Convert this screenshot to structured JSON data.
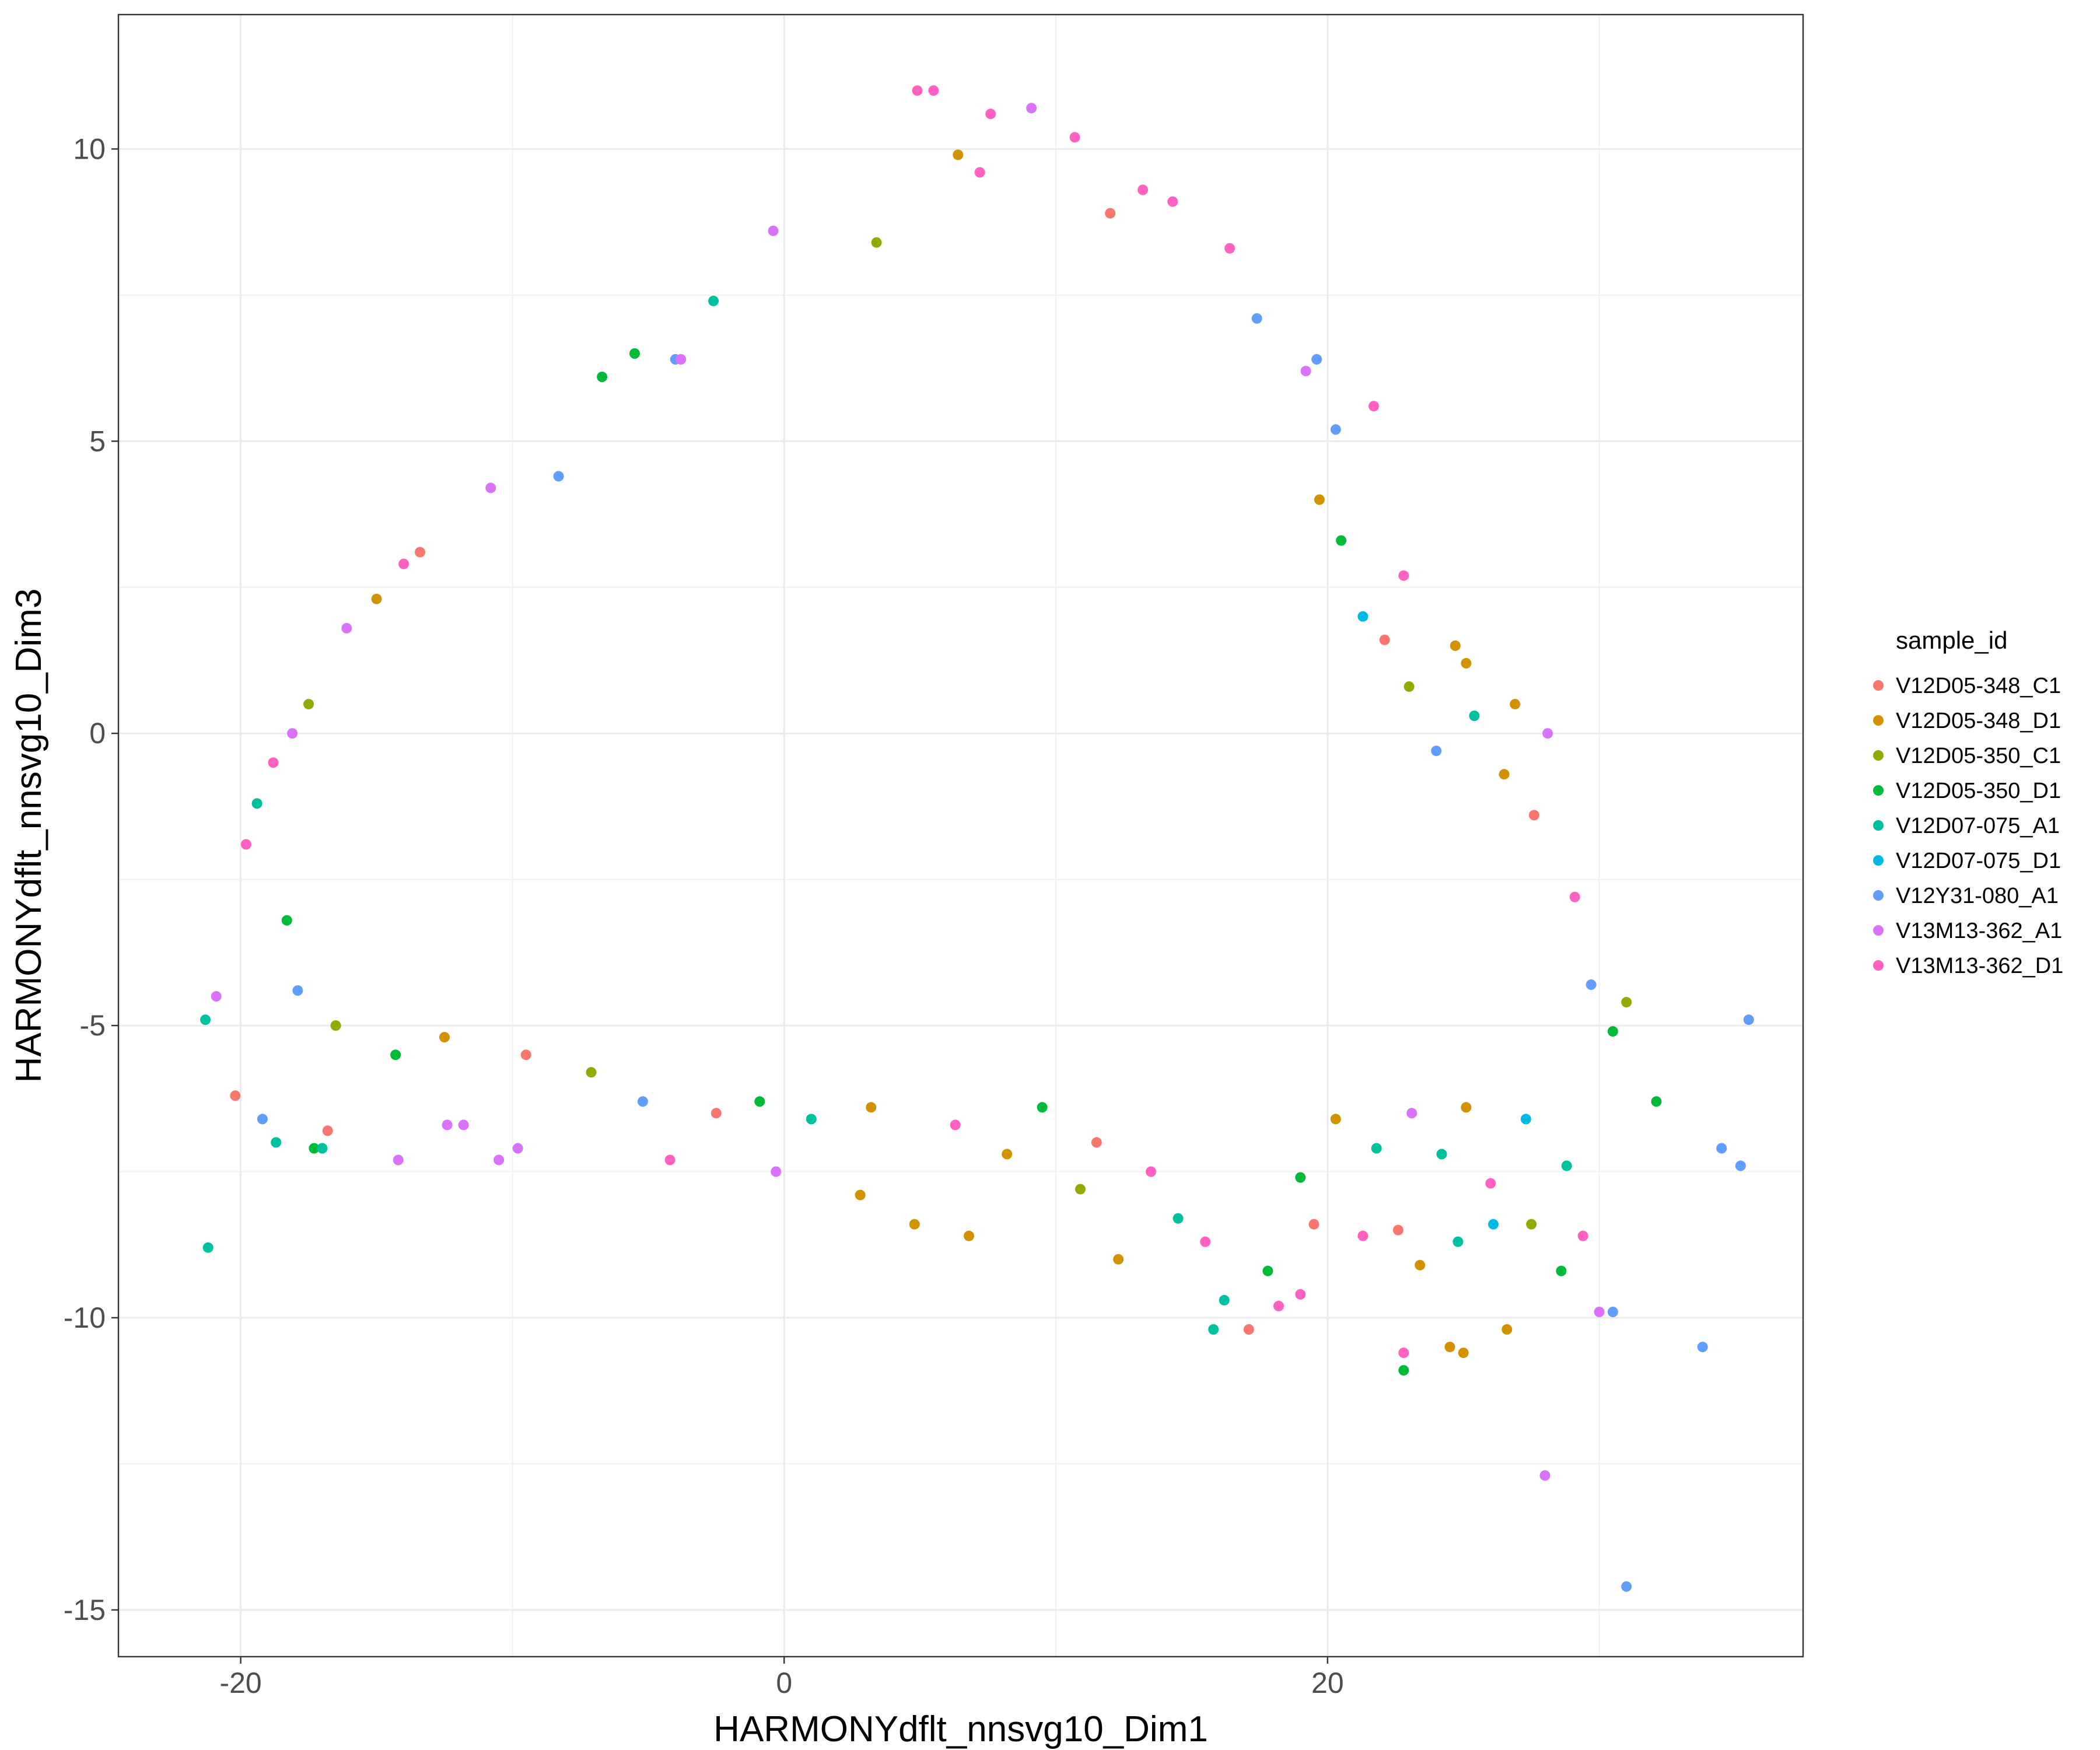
{
  "chart_data": {
    "type": "scatter",
    "title": "",
    "xlabel": "HARMONYdflt_nnsvg10_Dim1",
    "ylabel": "HARMONYdflt_nnsvg10_Dim3",
    "xlim": [
      -24.5,
      37.5
    ],
    "ylim": [
      -15.8,
      12.3
    ],
    "x_ticks": [
      -20,
      0,
      20
    ],
    "x_tick_labels": [
      "-20",
      "0",
      "20"
    ],
    "y_ticks": [
      -15,
      -10,
      -5,
      0,
      5,
      10
    ],
    "y_tick_labels": [
      "-15",
      "-10",
      "-5",
      "0",
      "5",
      "10"
    ],
    "x_minor_ticks": [
      -10,
      10,
      30
    ],
    "y_minor_ticks": [
      -12.5,
      -7.5,
      -2.5,
      2.5,
      7.5
    ],
    "grid": true,
    "legend_title": "sample_id",
    "legend_position": "right",
    "series": [
      {
        "name": "V12D05-348_C1",
        "color": "#F8766D"
      },
      {
        "name": "V12D05-348_D1",
        "color": "#D39200"
      },
      {
        "name": "V12D05-350_C1",
        "color": "#93AA00"
      },
      {
        "name": "V12D05-350_D1",
        "color": "#00BA38"
      },
      {
        "name": "V12D07-075_A1",
        "color": "#00C19F"
      },
      {
        "name": "V12D07-075_D1",
        "color": "#00B9E3"
      },
      {
        "name": "V12Y31-080_A1",
        "color": "#619CFF"
      },
      {
        "name": "V13M13-362_A1",
        "color": "#DB72FB"
      },
      {
        "name": "V13M13-362_D1",
        "color": "#FF61C3"
      }
    ],
    "points": [
      [
        -21.2,
        -8.8,
        4
      ],
      [
        -21.3,
        -4.9,
        4
      ],
      [
        -20.2,
        -6.2,
        0
      ],
      [
        -19.8,
        -1.9,
        8
      ],
      [
        -19.2,
        -6.6,
        6
      ],
      [
        -20.9,
        -4.5,
        7
      ],
      [
        -18.7,
        -7.0,
        4
      ],
      [
        -17.3,
        -7.1,
        3
      ],
      [
        -16.8,
        -6.8,
        0
      ],
      [
        -17.0,
        -7.1,
        4
      ],
      [
        -14.2,
        -7.3,
        7
      ],
      [
        -10.5,
        -7.3,
        7
      ],
      [
        -11.8,
        -6.7,
        7
      ],
      [
        -12.4,
        -6.7,
        7
      ],
      [
        -9.8,
        -7.1,
        7
      ],
      [
        -4.2,
        -7.3,
        8
      ],
      [
        -0.3,
        -7.5,
        7
      ],
      [
        -0.9,
        -6.3,
        3
      ],
      [
        2.8,
        -7.9,
        1
      ],
      [
        4.8,
        -8.4,
        1
      ],
      [
        6.8,
        -8.6,
        1
      ],
      [
        10.9,
        -7.8,
        2
      ],
      [
        12.3,
        -9.0,
        1
      ],
      [
        16.2,
        -9.7,
        4
      ],
      [
        17.1,
        -10.2,
        0
      ],
      [
        15.8,
        -10.2,
        4
      ],
      [
        18.2,
        -9.8,
        8
      ],
      [
        19.0,
        -9.6,
        8
      ],
      [
        22.8,
        -10.9,
        3
      ],
      [
        22.8,
        -10.6,
        8
      ],
      [
        24.5,
        -10.5,
        1
      ],
      [
        25.0,
        -10.6,
        1
      ],
      [
        26.6,
        -10.2,
        1
      ],
      [
        28.0,
        -12.7,
        7
      ],
      [
        30.5,
        -9.9,
        6
      ],
      [
        30.0,
        -9.9,
        7
      ],
      [
        33.8,
        -10.5,
        6
      ],
      [
        31.0,
        -14.6,
        6
      ],
      [
        35.2,
        -7.4,
        6
      ],
      [
        34.5,
        -7.1,
        6
      ],
      [
        35.5,
        -4.9,
        6
      ],
      [
        32.1,
        -6.3,
        3
      ],
      [
        31.0,
        -4.6,
        2
      ],
      [
        30.5,
        -5.1,
        3
      ],
      [
        28.1,
        0.0,
        7
      ],
      [
        26.9,
        0.5,
        1
      ],
      [
        24.7,
        1.5,
        1
      ],
      [
        25.1,
        1.2,
        1
      ],
      [
        22.8,
        2.7,
        8
      ],
      [
        21.7,
        5.6,
        8
      ],
      [
        20.3,
        5.2,
        6
      ],
      [
        19.6,
        6.4,
        6
      ],
      [
        19.2,
        6.2,
        7
      ],
      [
        17.4,
        7.1,
        6
      ],
      [
        16.4,
        8.3,
        8
      ],
      [
        13.2,
        9.3,
        8
      ],
      [
        14.3,
        9.1,
        8
      ],
      [
        10.7,
        10.2,
        8
      ],
      [
        9.1,
        10.7,
        7
      ],
      [
        7.6,
        10.6,
        8
      ],
      [
        5.5,
        11.0,
        8
      ],
      [
        4.9,
        11.0,
        8
      ],
      [
        6.4,
        9.9,
        1
      ],
      [
        7.2,
        9.6,
        8
      ],
      [
        12.0,
        8.9,
        0
      ],
      [
        3.4,
        8.4,
        2
      ],
      [
        -0.4,
        8.6,
        7
      ],
      [
        -2.6,
        7.4,
        4
      ],
      [
        -5.5,
        6.5,
        3
      ],
      [
        -6.7,
        6.1,
        3
      ],
      [
        -4.0,
        6.4,
        6
      ],
      [
        -3.8,
        6.4,
        7
      ],
      [
        -13.4,
        3.1,
        0
      ],
      [
        -10.8,
        4.2,
        7
      ],
      [
        -8.3,
        4.4,
        6
      ],
      [
        -14.0,
        2.9,
        8
      ],
      [
        -15.0,
        2.3,
        1
      ],
      [
        -16.1,
        1.8,
        7
      ],
      [
        -17.5,
        0.5,
        2
      ],
      [
        -18.1,
        0.0,
        7
      ],
      [
        -18.8,
        -0.5,
        8
      ],
      [
        -19.4,
        -1.2,
        4
      ],
      [
        -18.3,
        -3.2,
        3
      ],
      [
        -17.9,
        -4.4,
        6
      ],
      [
        -16.5,
        -5.0,
        2
      ],
      [
        -14.3,
        -5.5,
        3
      ],
      [
        -12.5,
        -5.2,
        1
      ],
      [
        -9.5,
        -5.5,
        0
      ],
      [
        -7.1,
        -5.8,
        2
      ],
      [
        -5.2,
        -6.3,
        6
      ],
      [
        -2.5,
        -6.5,
        0
      ],
      [
        1.0,
        -6.6,
        4
      ],
      [
        3.2,
        -6.4,
        1
      ],
      [
        6.3,
        -6.7,
        8
      ],
      [
        8.2,
        -7.2,
        1
      ],
      [
        9.5,
        -6.4,
        3
      ],
      [
        11.5,
        -7.0,
        0
      ],
      [
        13.5,
        -7.5,
        8
      ],
      [
        14.5,
        -8.3,
        4
      ],
      [
        15.5,
        -8.7,
        8
      ],
      [
        17.8,
        -9.2,
        3
      ],
      [
        19.5,
        -8.4,
        0
      ],
      [
        21.3,
        -8.6,
        8
      ],
      [
        22.6,
        -8.5,
        0
      ],
      [
        23.4,
        -9.1,
        1
      ],
      [
        24.8,
        -8.7,
        4
      ],
      [
        26.1,
        -8.4,
        5
      ],
      [
        27.5,
        -8.4,
        2
      ],
      [
        28.6,
        -9.2,
        3
      ],
      [
        29.4,
        -8.6,
        8
      ],
      [
        28.8,
        -7.4,
        4
      ],
      [
        27.3,
        -6.6,
        5
      ],
      [
        26.0,
        -7.7,
        8
      ],
      [
        25.1,
        -6.4,
        1
      ],
      [
        24.2,
        -7.2,
        4
      ],
      [
        23.1,
        -6.5,
        7
      ],
      [
        21.8,
        -7.1,
        4
      ],
      [
        20.3,
        -6.6,
        1
      ],
      [
        19.0,
        -7.6,
        3
      ],
      [
        29.7,
        -4.3,
        6
      ],
      [
        29.1,
        -2.8,
        8
      ],
      [
        27.6,
        -1.4,
        0
      ],
      [
        26.5,
        -0.7,
        1
      ],
      [
        25.4,
        0.3,
        4
      ],
      [
        24.0,
        -0.3,
        6
      ],
      [
        23.0,
        0.8,
        2
      ],
      [
        22.1,
        1.6,
        0
      ],
      [
        21.3,
        2.0,
        5
      ],
      [
        20.5,
        3.3,
        3
      ],
      [
        19.7,
        4.0,
        1
      ]
    ]
  }
}
